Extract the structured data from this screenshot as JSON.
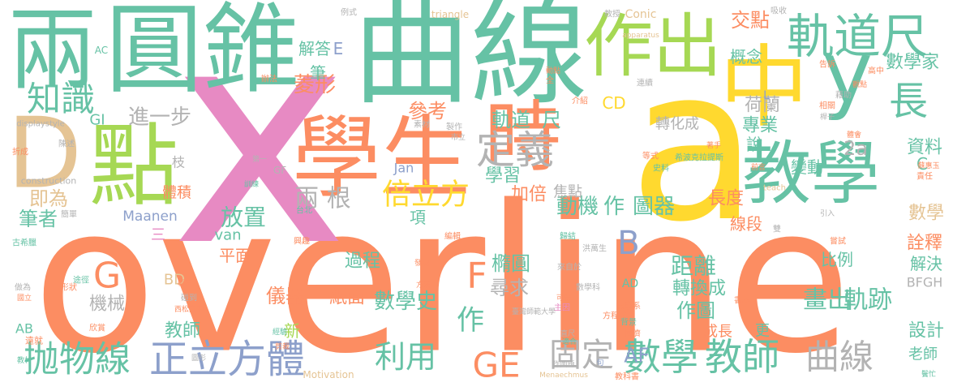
{
  "words": [
    "overline",
    "a",
    "x",
    "兩",
    "圓錐",
    "曲線",
    "作出",
    "中",
    "y",
    "軌道尺",
    "長",
    "D",
    "點",
    "學生",
    "時",
    "教學",
    "知識",
    "進一步",
    "定義",
    "倍立方",
    "兩 根",
    "即為",
    "放置",
    "筆者",
    "抛物線",
    "正立方體",
    "利用",
    "GE",
    "固定",
    "數學",
    "教師",
    "曲線",
    "數學史",
    "作",
    "F",
    "橢圓",
    "尋求",
    "B",
    "G",
    "距離",
    "轉換成",
    "作圖",
    "畫出",
    "軌跡",
    "AF",
    "動機",
    "作",
    "圖器",
    "長度",
    "加倍",
    "焦點",
    "學習",
    "軌道",
    "尺",
    "參考",
    "菱形",
    "解答",
    "E",
    "筆",
    "交點",
    "概念",
    "數學家",
    "資料",
    "C",
    "數學",
    "詮釋",
    "解決",
    "BFGH",
    "設計",
    "老師",
    "專業",
    "荷蘭",
    "2a",
    "變動",
    "說",
    "轉化成",
    "CD",
    "線段",
    "比例",
    "成長",
    "更",
    "教師",
    "新",
    "儀器",
    "紙面",
    "過程",
    "項",
    "機械",
    "平面",
    "van",
    "Maanen",
    "三",
    "體積",
    "枝",
    "GI",
    "BD",
    "AB",
    "GF",
    "Jan",
    "triangle",
    "Conic",
    "construction",
    "displaystyle",
    "Motivation",
    "Menaechmus",
    "teach",
    "apparatus",
    "AC",
    "AD",
    "L",
    "臺灣師範大學",
    "數學科",
    "教科書",
    "數學系",
    "方程式",
    "作圖題",
    "國立",
    "西松高中",
    "台北",
    "洪萬生",
    "來自於",
    "主因",
    "可得",
    "同儕",
    "適合",
    "直尺",
    "背景",
    "經驗",
    "剪裁",
    "圖形",
    "欣賞",
    "遠就",
    "做為",
    "古希臘",
    "簡單",
    "教材",
    "折成",
    "陳述",
    "訓練",
    "第一",
    "製作",
    "市立",
    "歸結",
    "編輯",
    "發現",
    "方法",
    "形狀",
    "途徑",
    "輕易",
    "碰到",
    "興趣",
    "責任",
    "蘇惠玉",
    "告訴",
    "相關",
    "觀點",
    "藉助",
    "體會",
    "桿子",
    "書本",
    "嘗試",
    "雙",
    "引入",
    "吸收",
    "教授",
    "高中",
    "介紹",
    "連續",
    "素材",
    "著手",
    "希波克拉提斯",
    "等式",
    "史料",
    "前言",
    "例式",
    "動點",
    "全",
    "辦法",
    "句",
    "鬢忙"
  ]
}
